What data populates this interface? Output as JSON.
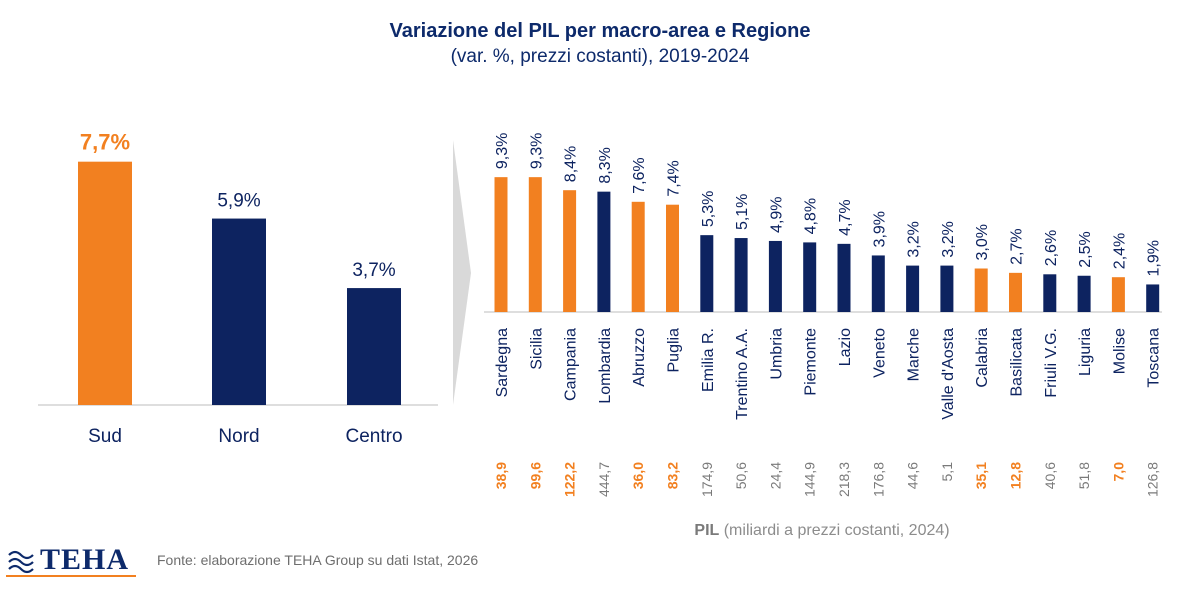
{
  "colors": {
    "south": "#f28020",
    "other": "#0d2360",
    "axis": "#8a8a8a",
    "value_other": "#7a7a7a",
    "arrow": "#d9d9d9",
    "title": "#0d2a6b"
  },
  "header": {
    "title": "Variazione del PIL per macro-area e Regione",
    "subtitle": "(var. %, prezzi costanti), 2019-2024"
  },
  "footer": {
    "logo_text": "TEHA",
    "source": "Fonte: elaborazione TEHA Group su dati Istat, 2026"
  },
  "chart_data": [
    {
      "type": "bar",
      "categories": [
        "Sud",
        "Nord",
        "Centro"
      ],
      "values": [
        7.7,
        5.9,
        3.7
      ],
      "data_labels": [
        "7,7%",
        "5,9%",
        "3,7%"
      ],
      "highlight": [
        true,
        false,
        false
      ],
      "ylim": [
        0,
        8.5
      ]
    },
    {
      "type": "bar",
      "categories": [
        "Sardegna",
        "Sicilia",
        "Campania",
        "Lombardia",
        "Abruzzo",
        "Puglia",
        "Emilia R.",
        "Trentino A.A.",
        "Umbria",
        "Piemonte",
        "Lazio",
        "Veneto",
        "Marche",
        "Valle d'Aosta",
        "Calabria",
        "Basilicata",
        "Friuli V.G.",
        "Liguria",
        "Molise",
        "Toscana"
      ],
      "values": [
        9.3,
        9.3,
        8.4,
        8.3,
        7.6,
        7.4,
        5.3,
        5.1,
        4.9,
        4.8,
        4.7,
        3.9,
        3.2,
        3.2,
        3.0,
        2.7,
        2.6,
        2.5,
        2.4,
        1.9
      ],
      "data_labels": [
        "9,3%",
        "9,3%",
        "8,4%",
        "8,3%",
        "7,6%",
        "7,4%",
        "5,3%",
        "5,1%",
        "4,9%",
        "4,8%",
        "4,7%",
        "3,9%",
        "3,2%",
        "3,2%",
        "3,0%",
        "2,7%",
        "2,6%",
        "2,5%",
        "2,4%",
        "1,9%"
      ],
      "highlight": [
        true,
        true,
        true,
        false,
        true,
        true,
        false,
        false,
        false,
        false,
        false,
        false,
        false,
        false,
        true,
        true,
        false,
        false,
        true,
        false
      ],
      "pil_values": [
        "38,9",
        "99,6",
        "122,2",
        "444,7",
        "36,0",
        "83,2",
        "174,9",
        "50,6",
        "24,4",
        "144,9",
        "218,3",
        "176,8",
        "44,6",
        "5,1",
        "35,1",
        "12,8",
        "40,6",
        "51,8",
        "7,0",
        "126,8"
      ],
      "pil_label_bold": "PIL",
      "pil_label_rest": " (miliardi a prezzi costanti, 2024)",
      "ylim": [
        0,
        10
      ]
    }
  ]
}
